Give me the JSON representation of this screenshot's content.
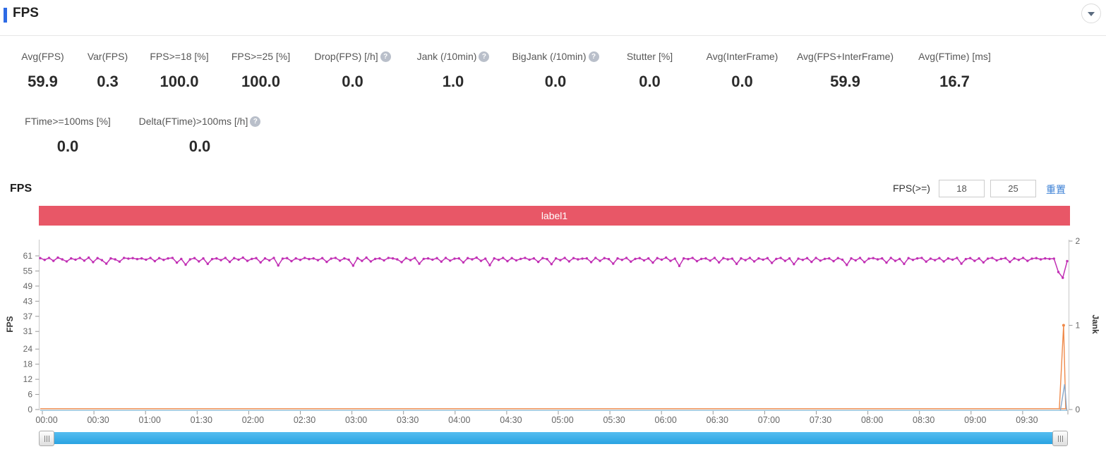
{
  "header": {
    "title": "FPS"
  },
  "metrics_row1": [
    {
      "label": "Avg(FPS)",
      "value": "59.9",
      "help": false
    },
    {
      "label": "Var(FPS)",
      "value": "0.3",
      "help": false
    },
    {
      "label": "FPS>=18 [%]",
      "value": "100.0",
      "help": false
    },
    {
      "label": "FPS>=25 [%]",
      "value": "100.0",
      "help": false
    },
    {
      "label": "Drop(FPS) [/h]",
      "value": "0.0",
      "help": true
    },
    {
      "label": "Jank (/10min)",
      "value": "1.0",
      "help": true
    },
    {
      "label": "BigJank (/10min)",
      "value": "0.0",
      "help": true
    },
    {
      "label": "Stutter [%]",
      "value": "0.0",
      "help": false
    },
    {
      "label": "Avg(InterFrame)",
      "value": "0.0",
      "help": false
    },
    {
      "label": "Avg(FPS+InterFrame)",
      "value": "59.9",
      "help": false
    },
    {
      "label": "Avg(FTime) [ms]",
      "value": "16.7",
      "help": false
    }
  ],
  "metrics_row2": [
    {
      "label": "FTime>=100ms [%]",
      "value": "0.0",
      "help": false
    },
    {
      "label": "Delta(FTime)>100ms [/h]",
      "value": "0.0",
      "help": true
    }
  ],
  "chart_section": {
    "title": "FPS",
    "filter_label": "FPS(>=)",
    "threshold1": "18",
    "threshold2": "25",
    "reset_label": "重置",
    "banner_label": "label1"
  },
  "colors": {
    "accent_blue": "#2e6be5",
    "banner_red": "#e85767",
    "fps_line": "#c12fb4",
    "jank_orange": "#ef8a4b",
    "aux_flat_blue": "#9fcfe8",
    "spike_blue": "#8aa8c8",
    "scrollbar_blue": "#35ace4",
    "link_blue": "#3a7fd5"
  },
  "chart_data": {
    "type": "line",
    "banner": "label1",
    "x_axis": {
      "tick_labels": [
        "00:00",
        "00:30",
        "01:00",
        "01:30",
        "02:00",
        "02:30",
        "03:00",
        "03:30",
        "04:00",
        "04:30",
        "05:00",
        "05:30",
        "06:00",
        "06:30",
        "07:00",
        "07:30",
        "08:00",
        "08:30",
        "09:00",
        "09:30"
      ]
    },
    "y_left": {
      "label": "FPS",
      "ticks": [
        61,
        55,
        49,
        43,
        37,
        31,
        24,
        18,
        12,
        6,
        0
      ],
      "range": [
        0,
        67
      ]
    },
    "y_right": {
      "label": "Jank",
      "ticks": [
        2,
        1,
        0
      ],
      "range": [
        0,
        2
      ]
    },
    "grid": false,
    "legend": false,
    "series": [
      {
        "name": "FPS",
        "axis": "left",
        "color": "#c12fb4",
        "values": [
          60.1,
          59.4,
          60.2,
          59.0,
          60.3,
          59.6,
          58.8,
          60.0,
          59.5,
          60.2,
          59.1,
          60.3,
          58.5,
          60.1,
          59.3,
          57.9,
          60.0,
          59.6,
          58.7,
          60.2,
          59.9,
          60.1,
          59.7,
          60.0,
          59.5,
          60.2,
          58.9,
          60.1,
          59.4,
          60.0,
          60.2,
          58.3,
          59.8,
          57.5,
          59.6,
          60.1,
          58.8,
          60.0,
          57.8,
          59.7,
          60.0,
          59.3,
          60.2,
          58.6,
          60.1,
          59.5,
          60.3,
          59.0,
          59.8,
          60.1,
          58.4,
          60.0,
          59.2,
          60.2,
          57.2,
          59.9,
          60.1,
          58.9,
          60.0,
          59.4,
          60.2,
          59.7,
          60.0,
          59.3,
          60.1,
          58.6,
          59.9,
          60.2,
          59.1,
          60.0,
          59.5,
          57.1,
          60.1,
          59.0,
          60.3,
          58.8,
          59.8,
          60.0,
          59.2,
          60.2,
          60.0,
          59.6,
          58.5,
          60.1,
          59.3,
          60.2,
          57.9,
          59.8,
          60.0,
          59.5,
          60.1,
          58.7,
          60.2,
          59.1,
          59.9,
          60.0,
          58.4,
          60.1,
          59.6,
          60.3,
          59.0,
          59.9,
          57.3,
          60.0,
          59.4,
          60.2,
          58.9,
          60.1,
          59.2,
          59.8,
          60.2,
          59.5,
          60.0,
          58.6,
          60.1,
          59.7,
          57.7,
          60.0,
          59.3,
          60.2,
          58.8,
          60.1,
          59.6,
          59.9,
          60.0,
          58.5,
          60.2,
          59.0,
          60.1,
          59.7,
          57.9,
          60.0,
          59.4,
          60.2,
          58.7,
          59.8,
          60.1,
          59.2,
          60.0,
          58.3,
          60.1,
          59.5,
          60.3,
          59.0,
          59.9,
          57.0,
          60.0,
          59.7,
          60.2,
          58.9,
          59.8,
          60.0,
          59.1,
          60.2,
          58.4,
          60.1,
          59.6,
          59.9,
          57.8,
          60.0,
          59.3,
          60.2,
          58.8,
          60.0,
          59.5,
          60.1,
          58.2,
          59.8,
          60.2,
          59.0,
          60.0,
          57.7,
          59.9,
          59.4,
          60.1,
          58.6,
          60.2,
          59.1,
          59.8,
          60.0,
          58.9,
          60.1,
          59.5,
          57.4,
          60.0,
          59.2,
          60.2,
          58.5,
          59.9,
          60.1,
          59.6,
          60.0,
          58.3,
          60.2,
          59.0,
          59.8,
          57.8,
          60.1,
          59.4,
          60.0,
          60.2,
          58.7,
          59.9,
          59.3,
          60.1,
          58.8,
          60.0,
          59.5,
          60.2,
          57.9,
          59.7,
          60.1,
          59.0,
          60.0,
          58.4,
          59.9,
          60.2,
          59.2,
          59.8,
          60.1,
          58.6,
          60.0,
          59.4,
          60.2,
          59.0,
          59.9,
          60.1,
          59.6,
          60.0,
          59.8,
          59.9,
          54.6,
          52.3,
          58.9
        ]
      },
      {
        "name": "Jank",
        "axis": "right",
        "color": "#ef8a4b",
        "baseline": 0,
        "spikes": [
          {
            "x_frac": 0.9965,
            "value": 1
          }
        ]
      },
      {
        "name": "BigJank",
        "axis": "right",
        "color": "#9fcfe8",
        "spike_color": "#8aa8c8",
        "baseline": 0,
        "spikes": [
          {
            "x_frac": 0.9975,
            "value": 0.3
          }
        ]
      }
    ]
  }
}
